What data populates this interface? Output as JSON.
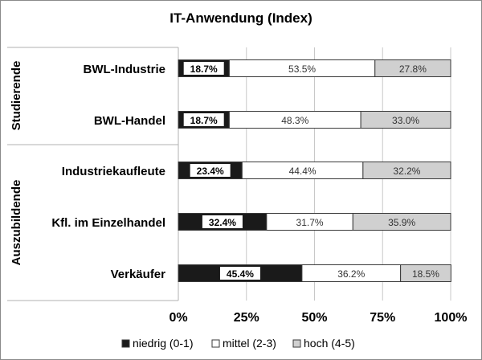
{
  "chart_data": {
    "type": "bar",
    "stacked": true,
    "orientation": "horizontal",
    "title": "IT-Anwendung (Index)",
    "groups": [
      {
        "label": "Studierende",
        "categories": [
          "BWL-Industrie",
          "BWL-Handel"
        ]
      },
      {
        "label": "Auszubildende",
        "categories": [
          "Industriekaufleute",
          "Kfl. im Einzelhandel",
          "Verkäufer"
        ]
      }
    ],
    "categories": [
      "BWL-Industrie",
      "BWL-Handel",
      "Industriekaufleute",
      "Kfl. im Einzelhandel",
      "Verkäufer"
    ],
    "series": [
      {
        "name": "niedrig (0-1)",
        "values": [
          18.7,
          18.7,
          23.4,
          32.4,
          45.4
        ],
        "labels": [
          "18.7%",
          "18.7%",
          "23.4%",
          "32.4%",
          "45.4%"
        ],
        "color": "#1a1a1a"
      },
      {
        "name": "mittel (2-3)",
        "values": [
          53.5,
          48.3,
          44.4,
          31.7,
          36.2
        ],
        "labels": [
          "53.5%",
          "48.3%",
          "44.4%",
          "31.7%",
          "36.2%"
        ],
        "color": "#ffffff"
      },
      {
        "name": "hoch (4-5)",
        "values": [
          27.8,
          33.0,
          32.2,
          35.9,
          18.5
        ],
        "labels": [
          "27.8%",
          "33.0%",
          "32.2%",
          "35.9%",
          "18.5%"
        ],
        "color": "#d0d0d0"
      }
    ],
    "xlim": [
      0,
      100
    ],
    "ticks": [
      0,
      25,
      50,
      75,
      100
    ],
    "tick_labels": [
      "0%",
      "25%",
      "50%",
      "75%",
      "100%"
    ],
    "grid": true,
    "legend": "bottom"
  }
}
